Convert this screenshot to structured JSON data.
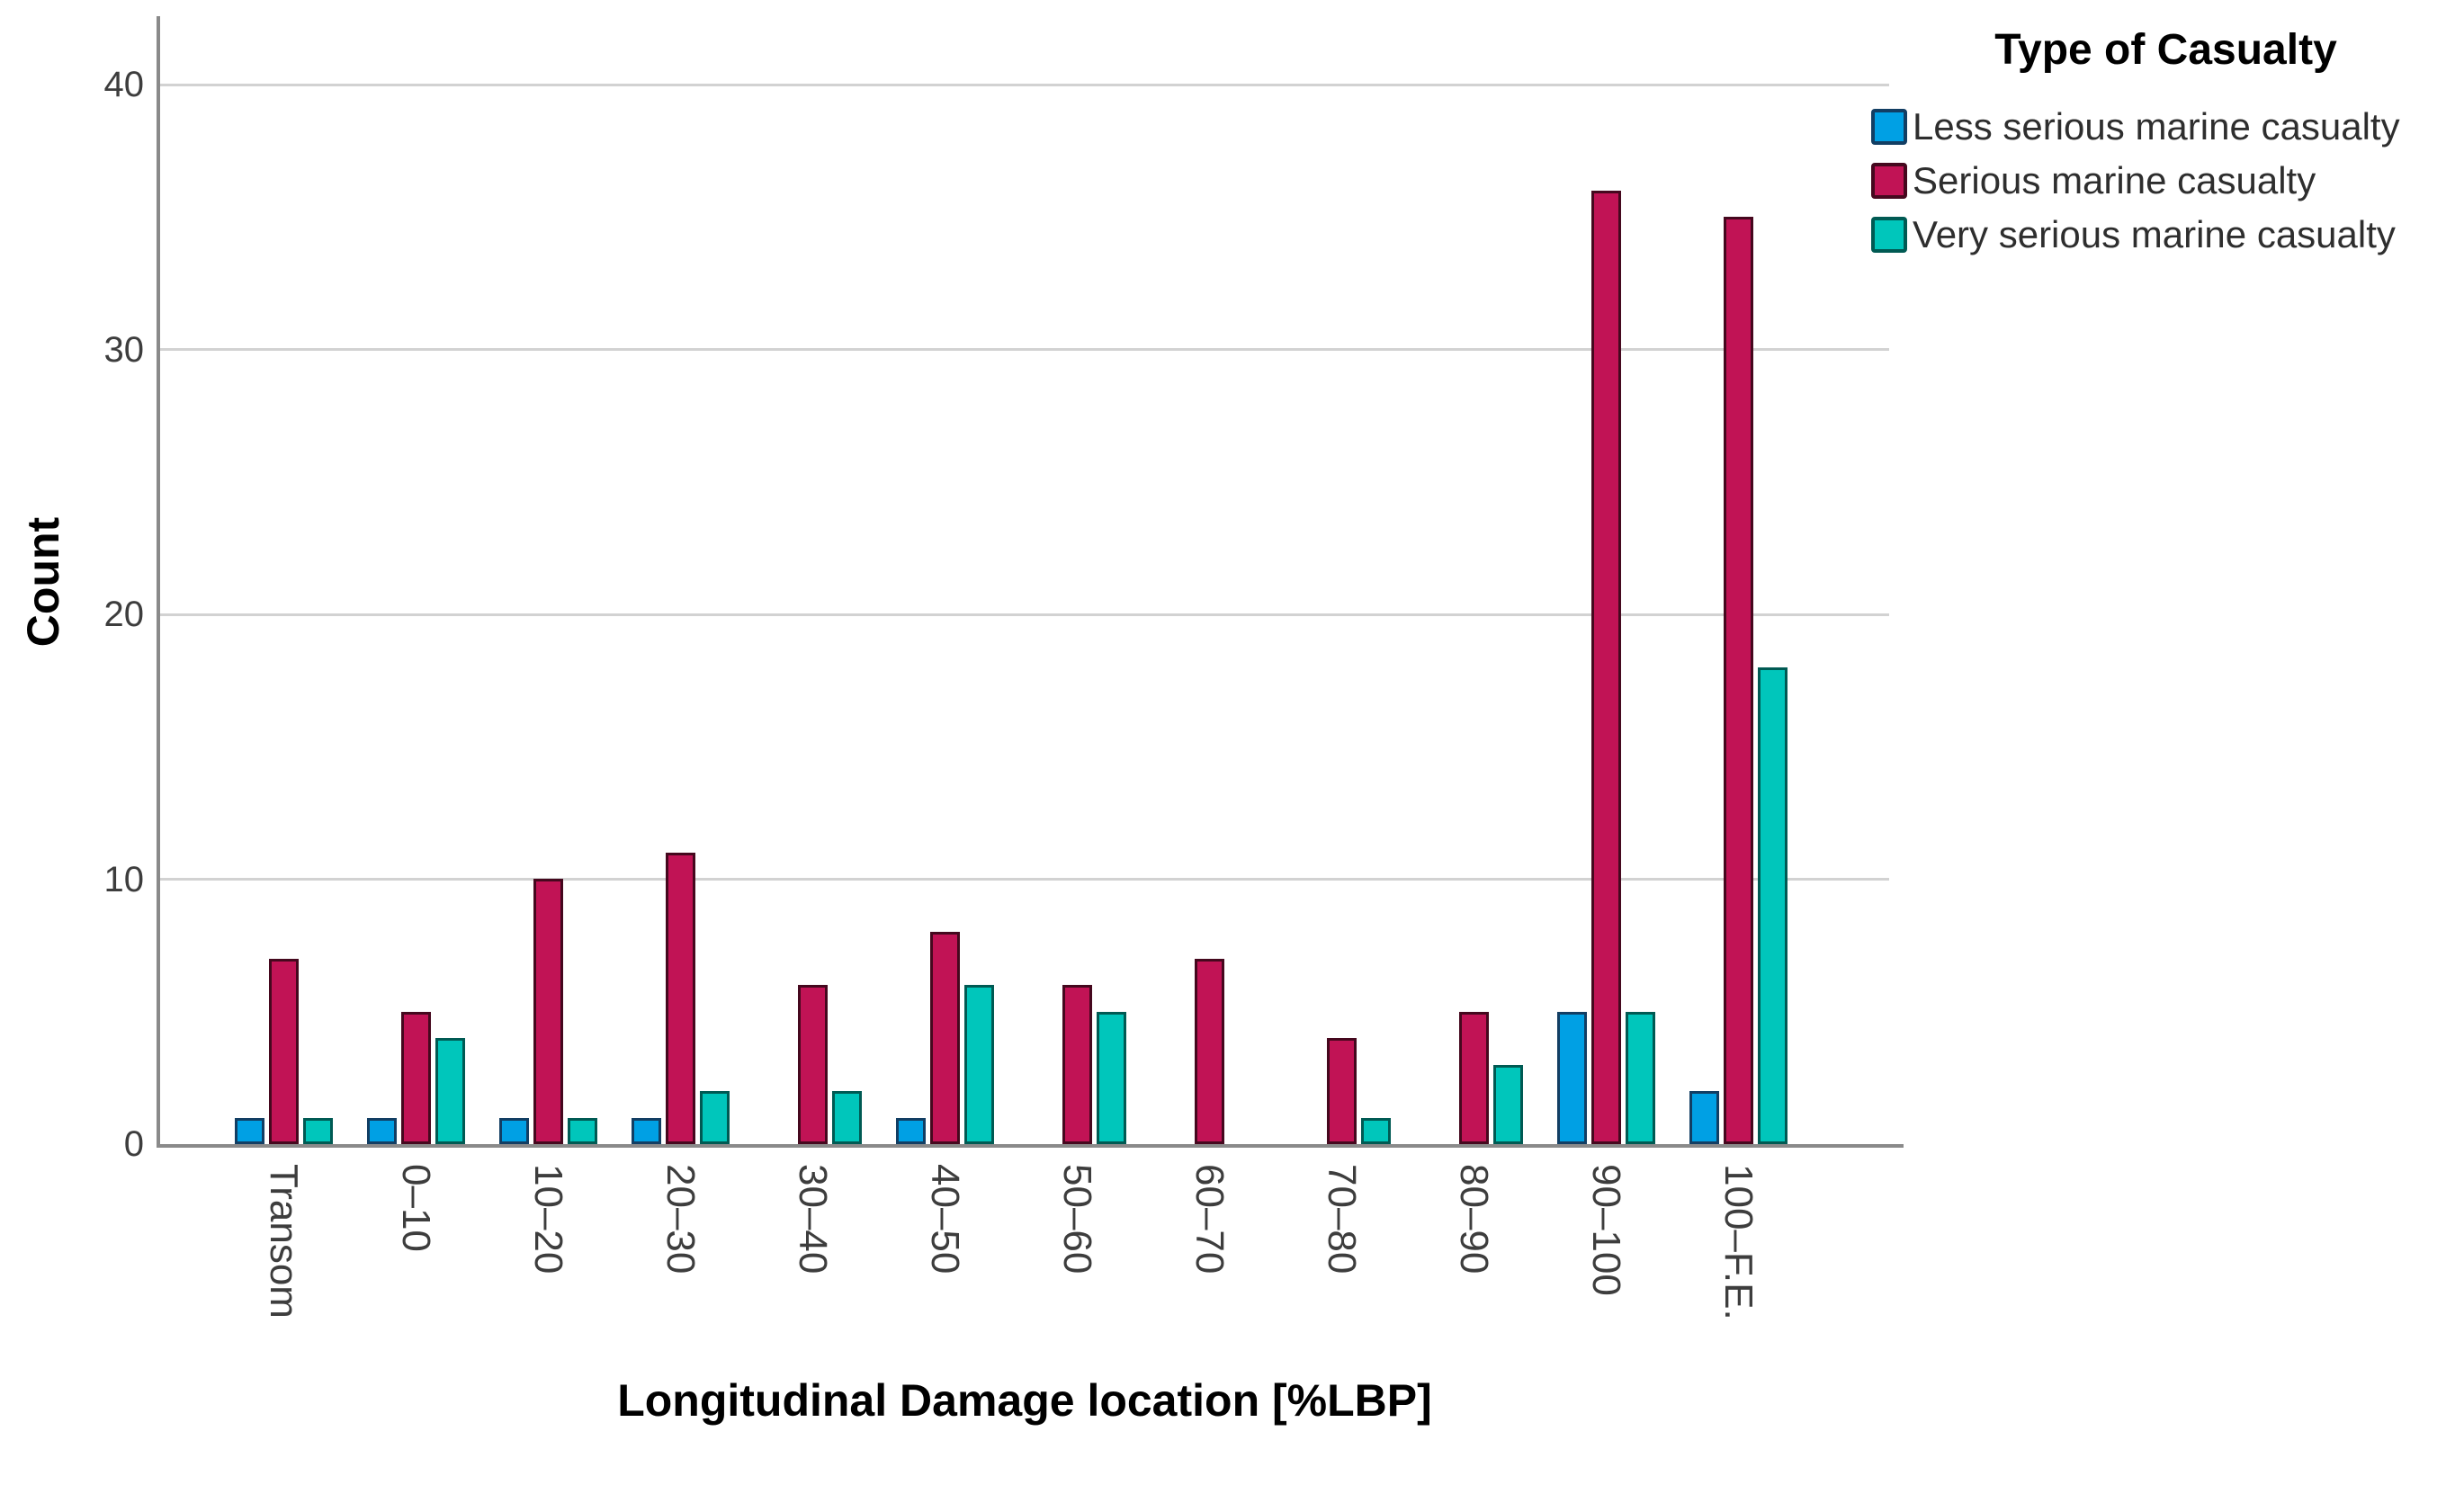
{
  "figure": {
    "background": "#ffffff",
    "grid_color": "#d2d2d2",
    "axis_color": "#8a8a8a",
    "tick_label_color": "#3d3d3d"
  },
  "chart_data": {
    "type": "bar",
    "title": "",
    "xlabel": "Longitudinal Damage location [%LBP]",
    "ylabel": "Count",
    "ylim": [
      0,
      42.6
    ],
    "grid": true,
    "legend_position": "top-right",
    "legend_title": "Type of Casualty",
    "y_ticks": [
      0,
      10,
      20,
      30,
      40
    ],
    "categories": [
      "Transom",
      "0–10",
      "10–20",
      "20–30",
      "30–40",
      "40–50",
      "50–60",
      "60–70",
      "70–80",
      "80–90",
      "90–100",
      "100–F.E."
    ],
    "series": [
      {
        "name": "Less serious marine casualty",
        "color": "#00A0E4",
        "border_color": "#123e63",
        "values": [
          1,
          1,
          1,
          1,
          0,
          1,
          0,
          0,
          0,
          0,
          5,
          2
        ]
      },
      {
        "name": "Serious marine casualty",
        "color": "#C11355",
        "border_color": "#45081e",
        "values": [
          7,
          5,
          10,
          11,
          6,
          8,
          6,
          7,
          4,
          5,
          36,
          35
        ]
      },
      {
        "name": "Very serious marine casualty",
        "color": "#00C6BB",
        "border_color": "#005a53",
        "values": [
          1,
          4,
          1,
          2,
          2,
          6,
          5,
          0,
          1,
          3,
          5,
          18
        ]
      }
    ]
  }
}
